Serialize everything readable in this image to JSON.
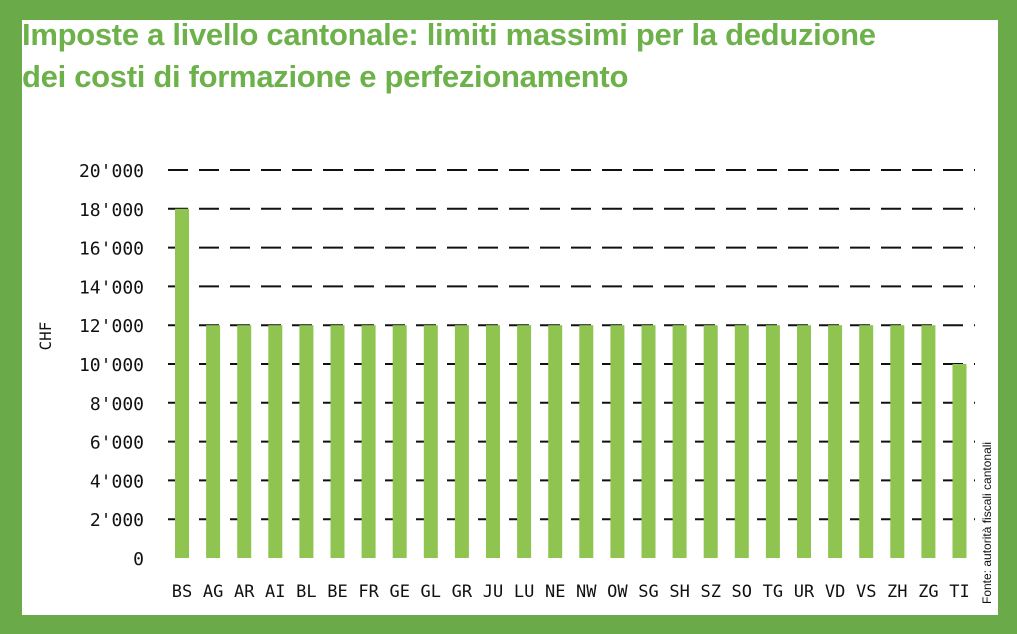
{
  "title_line1": "Imposte a livello cantonale: limiti massimi per la deduzione",
  "title_line2": "dei costi di formazione e perfezionamento",
  "source": "Fonte: autorità fiscali cantonali",
  "colors": {
    "bar": "#8fc451",
    "frame": "#6aaa48",
    "title": "#6cb14a",
    "grid": "#111111"
  },
  "chart_data": {
    "type": "bar",
    "title": "Imposte a livello cantonale: limiti massimi per la deduzione dei costi di formazione e perfezionamento",
    "xlabel": "",
    "ylabel": "CHF",
    "ylim": [
      0,
      20000
    ],
    "yticks": [
      0,
      2000,
      4000,
      6000,
      8000,
      10000,
      12000,
      14000,
      16000,
      18000,
      20000
    ],
    "ytick_labels": [
      "0",
      "2'000",
      "4'000",
      "6'000",
      "8'000",
      "10'000",
      "12'000",
      "14'000",
      "16'000",
      "18'000",
      "20'000"
    ],
    "grid": true,
    "categories": [
      "BS",
      "AG",
      "AR",
      "AI",
      "BL",
      "BE",
      "FR",
      "GE",
      "GL",
      "GR",
      "JU",
      "LU",
      "NE",
      "NW",
      "OW",
      "SG",
      "SH",
      "SZ",
      "SO",
      "TG",
      "UR",
      "VD",
      "VS",
      "ZH",
      "ZG",
      "TI"
    ],
    "values": [
      18000,
      12000,
      12000,
      12000,
      12000,
      12000,
      12000,
      12000,
      12000,
      12000,
      12000,
      12000,
      12000,
      12000,
      12000,
      12000,
      12000,
      12000,
      12000,
      12000,
      12000,
      12000,
      12000,
      12000,
      12000,
      10000
    ]
  }
}
